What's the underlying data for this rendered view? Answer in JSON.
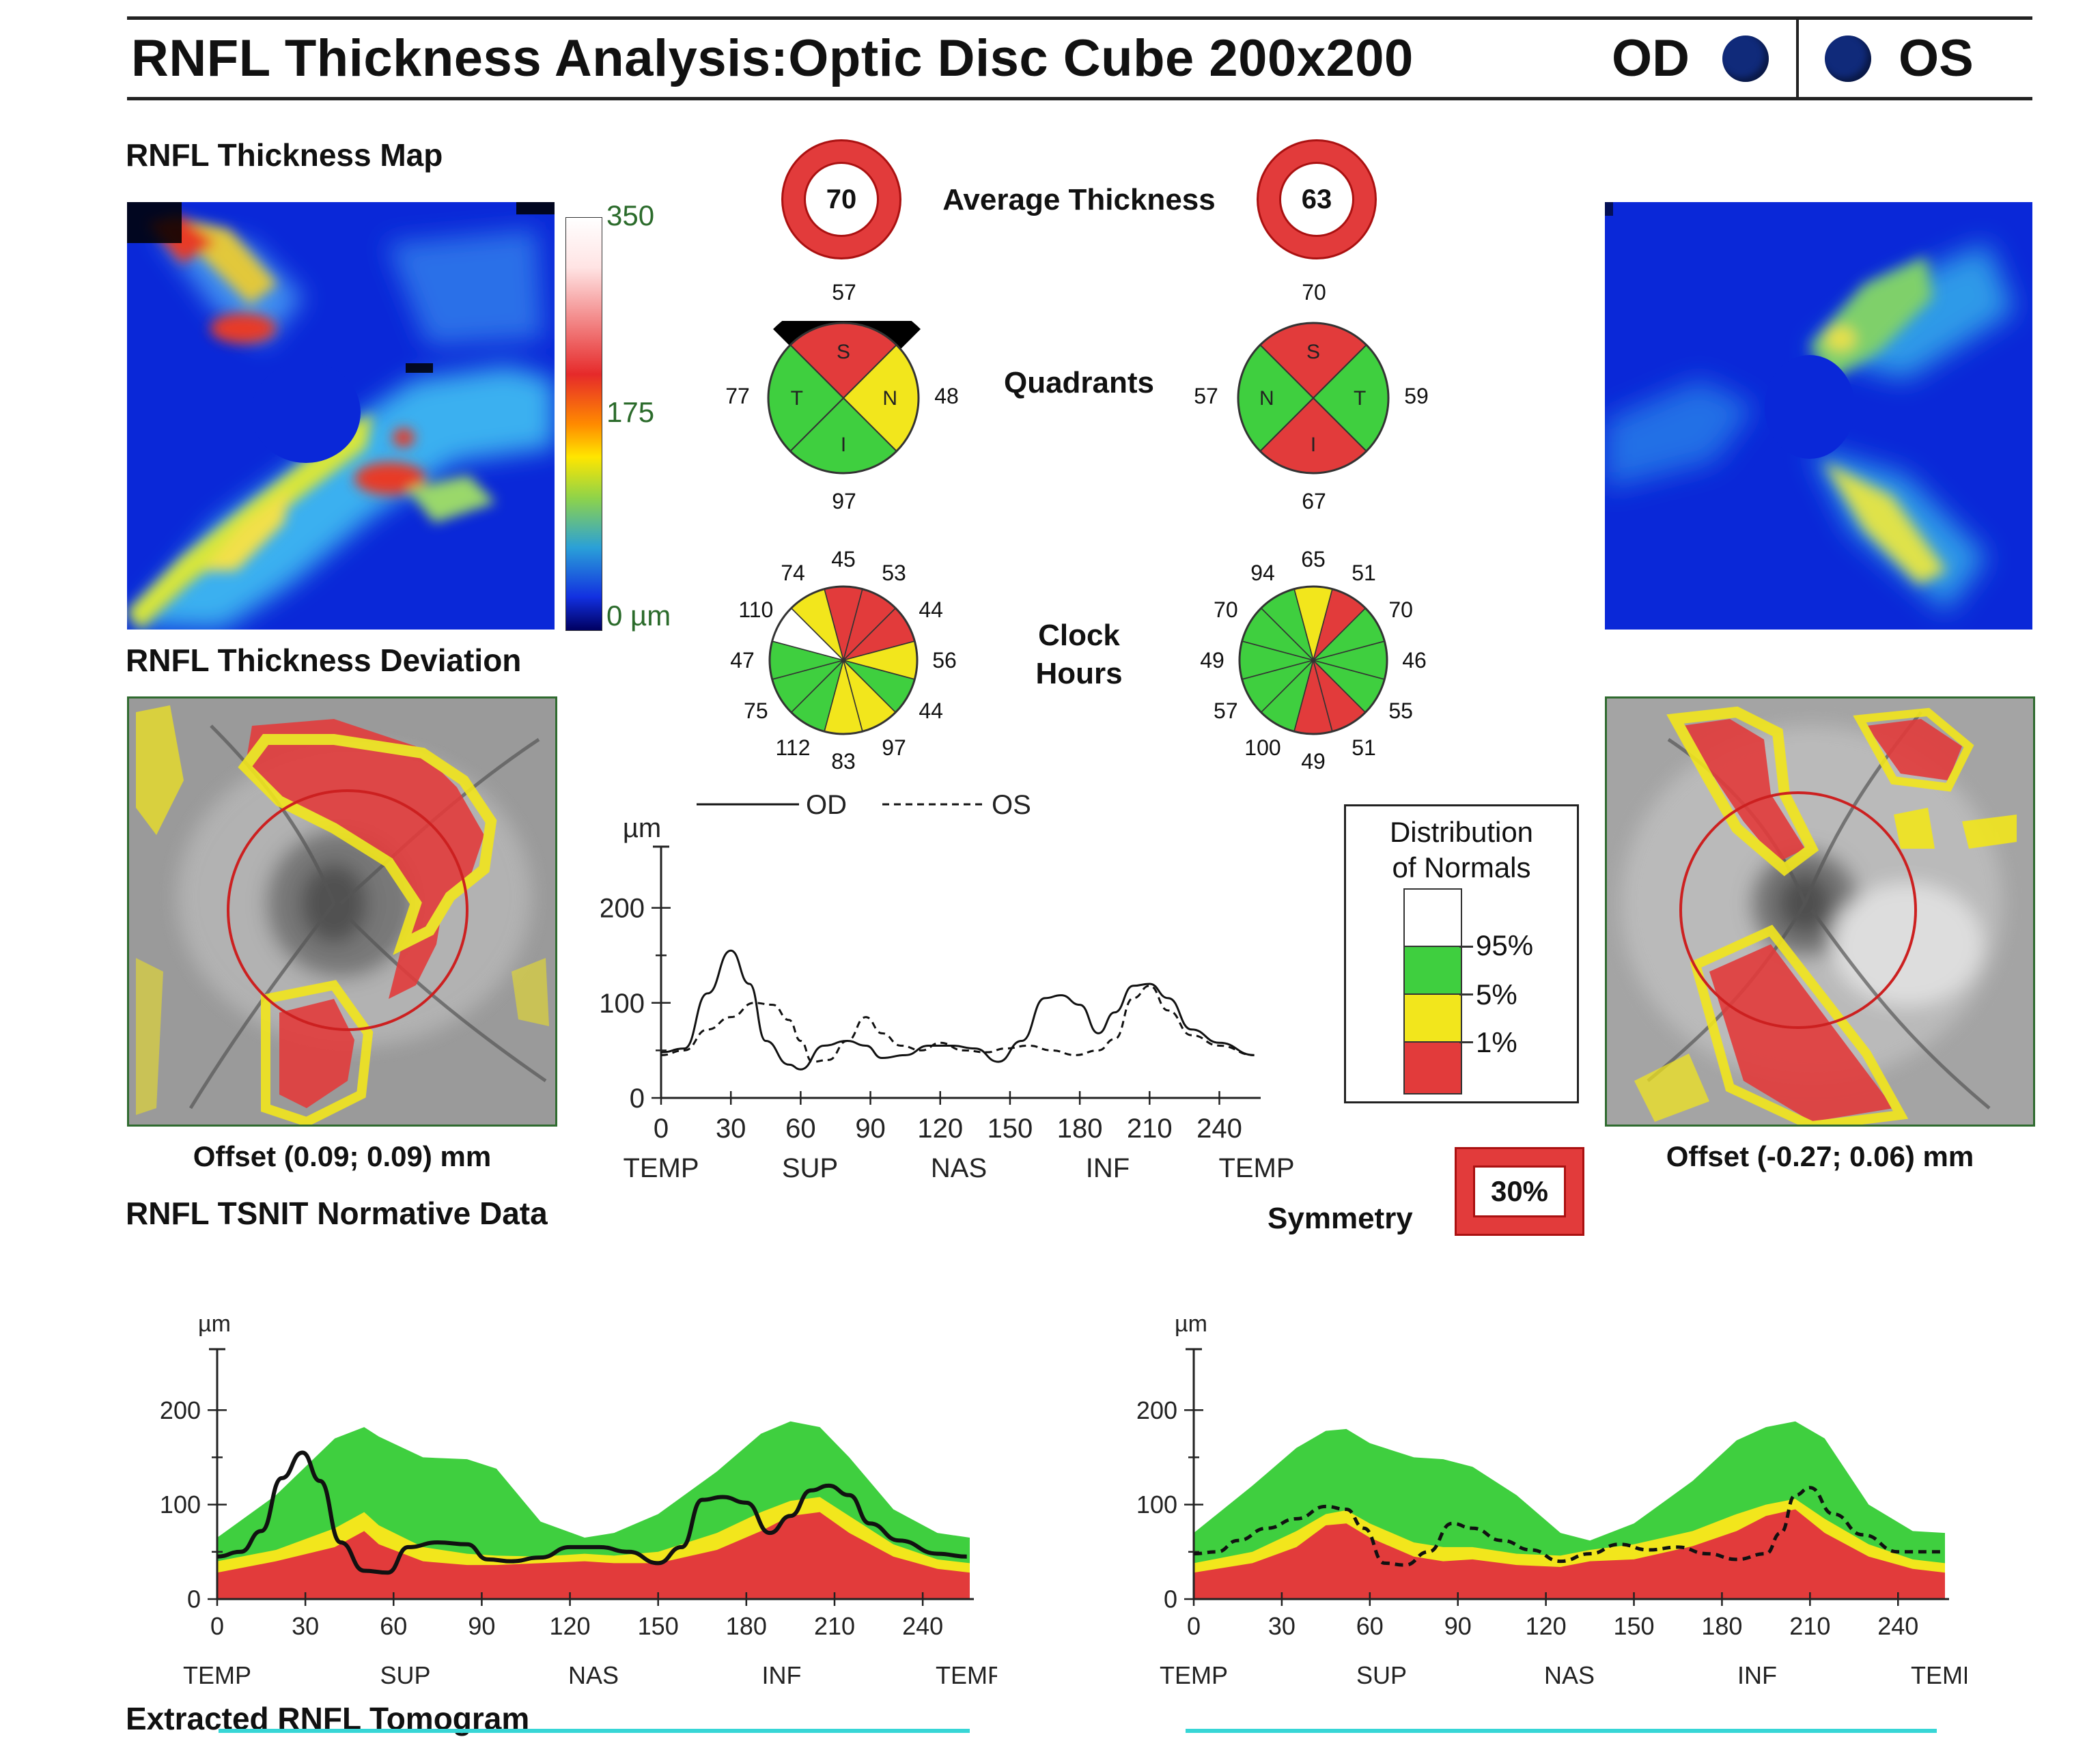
{
  "header": {
    "title": "RNFL Thickness Analysis:Optic Disc Cube 200x200",
    "od_label": "OD",
    "os_label": "OS"
  },
  "sections": {
    "thickness_map": "RNFL Thickness Map",
    "thickness_deviation": "RNFL Thickness Deviation",
    "tsnit_normative": "RNFL TSNIT Normative Data",
    "extracted_tomogram": "Extracted RNFL Tomogram"
  },
  "colorbar": {
    "top": "350",
    "mid": "175",
    "bottom": "0 µm"
  },
  "average_thickness": {
    "label": "Average Thickness",
    "od": "70",
    "os": "63"
  },
  "quadrants": {
    "label": "Quadrants",
    "od": {
      "top": "57",
      "left": "77",
      "right": "48",
      "bottom": "97",
      "S": "S",
      "T": "T",
      "N": "N",
      "I": "I",
      "colors": {
        "S": "#e23b3b",
        "T": "#3fcf3f",
        "N": "#f2e61c",
        "I": "#3fcf3f"
      }
    },
    "os": {
      "top": "70",
      "left": "57",
      "right": "59",
      "bottom": "67",
      "S": "S",
      "T": "T",
      "N": "N",
      "I": "I",
      "colors": {
        "S": "#e23b3b",
        "N": "#3fcf3f",
        "T": "#3fcf3f",
        "I": "#e23b3b"
      }
    }
  },
  "clock_hours": {
    "label_line1": "Clock",
    "label_line2": "Hours",
    "od": {
      "values": [
        "45",
        "53",
        "44",
        "56",
        "44",
        "97",
        "83",
        "112",
        "75",
        "47",
        "110",
        "74"
      ],
      "colors": [
        "#e23b3b",
        "#e23b3b",
        "#e23b3b",
        "#f2e61c",
        "#3fcf3f",
        "#f2e61c",
        "#f2e61c",
        "#3fcf3f",
        "#3fcf3f",
        "#3fcf3f",
        "#ffffff",
        "#f2e61c"
      ]
    },
    "os": {
      "values": [
        "65",
        "94",
        "70",
        "49",
        "57",
        "100",
        "49",
        "51",
        "55",
        "46",
        "70",
        "51"
      ],
      "colors": [
        "#f2e61c",
        "#3fcf3f",
        "#3fcf3f",
        "#3fcf3f",
        "#3fcf3f",
        "#3fcf3f",
        "#e23b3b",
        "#e23b3b",
        "#3fcf3f",
        "#3fcf3f",
        "#3fcf3f",
        "#e23b3b"
      ]
    }
  },
  "offsets": {
    "od": "Offset (0.09; 0.09) mm",
    "os": "Offset (-0.27; 0.06) mm"
  },
  "distribution": {
    "title_line1": "Distribution",
    "title_line2": "of Normals",
    "levels": [
      "95%",
      "5%",
      "1%"
    ],
    "colors": {
      "white": "#ffffff",
      "green": "#3fcf3f",
      "yellow": "#f2e61c",
      "red": "#e23b3b"
    }
  },
  "symmetry": {
    "label": "Symmetry",
    "value": "30%"
  },
  "chart_data": [
    {
      "type": "line",
      "ylabel": "µm",
      "legend": [
        "OD",
        "OS"
      ],
      "x_ticks": [
        "0",
        "30",
        "60",
        "90",
        "120",
        "150",
        "180",
        "210",
        "240"
      ],
      "y_ticks": [
        "0",
        "100",
        "200"
      ],
      "region_labels": [
        "TEMP",
        "SUP",
        "NAS",
        "INF",
        "TEMP"
      ],
      "xlim": [
        0,
        256
      ],
      "ylim": [
        0,
        250
      ],
      "series": [
        {
          "name": "OD",
          "style": "solid",
          "x": [
            0,
            10,
            20,
            30,
            38,
            45,
            55,
            60,
            70,
            80,
            88,
            95,
            105,
            115,
            125,
            135,
            145,
            155,
            165,
            172,
            180,
            188,
            195,
            203,
            210,
            218,
            228,
            240,
            255
          ],
          "y": [
            48,
            52,
            110,
            155,
            120,
            60,
            35,
            30,
            55,
            60,
            55,
            42,
            45,
            55,
            55,
            52,
            38,
            60,
            105,
            108,
            98,
            68,
            90,
            118,
            120,
            105,
            72,
            58,
            45
          ]
        },
        {
          "name": "OS",
          "style": "dashed",
          "x": [
            0,
            10,
            20,
            30,
            40,
            48,
            55,
            60,
            65,
            72,
            80,
            88,
            95,
            103,
            112,
            120,
            130,
            140,
            148,
            158,
            168,
            178,
            188,
            195,
            203,
            210,
            218,
            228,
            240,
            255
          ],
          "y": [
            45,
            50,
            72,
            85,
            100,
            98,
            82,
            60,
            38,
            40,
            60,
            85,
            68,
            55,
            50,
            58,
            50,
            48,
            52,
            55,
            50,
            45,
            50,
            62,
            105,
            118,
            92,
            66,
            55,
            45
          ]
        }
      ]
    },
    {
      "type": "area",
      "ylabel": "µm",
      "x_ticks": [
        "0",
        "30",
        "60",
        "90",
        "120",
        "150",
        "180",
        "210",
        "240"
      ],
      "y_ticks": [
        "0",
        "100",
        "200"
      ],
      "region_labels": [
        "TEMP",
        "SUP",
        "NAS",
        "INF",
        "TEMP"
      ],
      "xlim": [
        0,
        256
      ],
      "ylim": [
        0,
        250
      ],
      "bands_x": [
        0,
        20,
        40,
        50,
        55,
        70,
        85,
        95,
        110,
        125,
        135,
        150,
        170,
        185,
        195,
        205,
        215,
        230,
        245,
        256
      ],
      "band_red": [
        28,
        40,
        55,
        72,
        58,
        40,
        36,
        36,
        38,
        40,
        38,
        38,
        52,
        72,
        88,
        92,
        70,
        45,
        32,
        28
      ],
      "band_yellow": [
        40,
        52,
        75,
        92,
        78,
        55,
        48,
        46,
        45,
        48,
        46,
        50,
        70,
        92,
        104,
        108,
        88,
        58,
        42,
        38
      ],
      "band_green": [
        65,
        110,
        170,
        182,
        172,
        150,
        148,
        138,
        82,
        65,
        70,
        90,
        135,
        175,
        188,
        182,
        150,
        95,
        70,
        65
      ],
      "series": [
        {
          "name": "OD",
          "style": "solid",
          "x": [
            0,
            8,
            15,
            22,
            29,
            35,
            42,
            50,
            58,
            65,
            75,
            85,
            92,
            100,
            110,
            120,
            130,
            140,
            150,
            158,
            165,
            172,
            180,
            188,
            195,
            202,
            208,
            215,
            222,
            232,
            245,
            255
          ],
          "y": [
            45,
            50,
            72,
            128,
            155,
            125,
            60,
            30,
            28,
            55,
            60,
            58,
            42,
            40,
            44,
            55,
            55,
            50,
            38,
            55,
            105,
            108,
            102,
            70,
            88,
            115,
            120,
            110,
            80,
            62,
            48,
            45
          ]
        }
      ]
    },
    {
      "type": "area",
      "ylabel": "µm",
      "x_ticks": [
        "0",
        "30",
        "60",
        "90",
        "120",
        "150",
        "180",
        "210",
        "240"
      ],
      "y_ticks": [
        "0",
        "100",
        "200"
      ],
      "region_labels": [
        "TEMP",
        "SUP",
        "NAS",
        "INF",
        "TEMP"
      ],
      "xlim": [
        0,
        256
      ],
      "ylim": [
        0,
        250
      ],
      "bands_x": [
        0,
        20,
        35,
        45,
        52,
        60,
        75,
        85,
        95,
        110,
        125,
        135,
        150,
        170,
        185,
        195,
        205,
        215,
        230,
        245,
        256
      ],
      "band_red": [
        28,
        38,
        55,
        78,
        80,
        65,
        45,
        40,
        42,
        36,
        34,
        40,
        42,
        56,
        72,
        88,
        95,
        70,
        45,
        32,
        28
      ],
      "band_yellow": [
        38,
        50,
        72,
        90,
        94,
        80,
        60,
        55,
        55,
        48,
        46,
        52,
        58,
        72,
        90,
        100,
        106,
        85,
        58,
        42,
        38
      ],
      "band_green": [
        70,
        120,
        160,
        178,
        180,
        165,
        150,
        148,
        140,
        110,
        70,
        62,
        80,
        125,
        168,
        182,
        188,
        170,
        100,
        72,
        70
      ],
      "series": [
        {
          "name": "OS",
          "style": "dashed",
          "x": [
            0,
            8,
            15,
            25,
            35,
            45,
            52,
            58,
            65,
            72,
            80,
            88,
            95,
            105,
            115,
            125,
            135,
            145,
            155,
            165,
            175,
            185,
            195,
            200,
            205,
            210,
            218,
            228,
            240,
            255
          ],
          "y": [
            48,
            50,
            62,
            75,
            85,
            98,
            95,
            75,
            38,
            36,
            50,
            80,
            75,
            62,
            52,
            40,
            48,
            58,
            52,
            55,
            48,
            42,
            48,
            70,
            110,
            118,
            90,
            68,
            50,
            50
          ]
        }
      ]
    }
  ]
}
